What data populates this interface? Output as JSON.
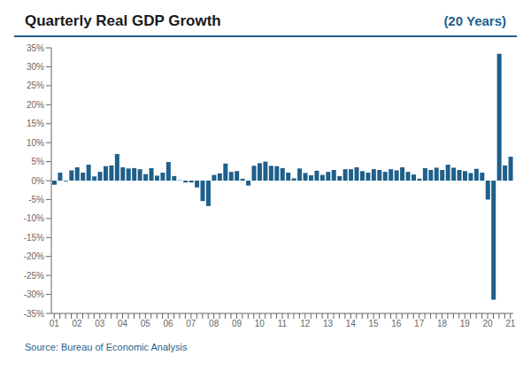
{
  "chart_data": {
    "type": "bar",
    "title": "Quarterly Real GDP Growth",
    "subtitle": "(20 Years)",
    "source": "Source: Bureau of Economic Analysis",
    "color": "#1F5F8B",
    "grid": false,
    "categories": [
      "01",
      null,
      null,
      null,
      "02",
      null,
      null,
      null,
      "03",
      null,
      null,
      null,
      "04",
      null,
      null,
      null,
      "05",
      null,
      null,
      null,
      "06",
      null,
      null,
      null,
      "07",
      null,
      null,
      null,
      "08",
      null,
      null,
      null,
      "09",
      null,
      null,
      null,
      "10",
      null,
      null,
      null,
      "11",
      null,
      null,
      null,
      "12",
      null,
      null,
      null,
      "13",
      null,
      null,
      null,
      "14",
      null,
      null,
      null,
      "15",
      null,
      null,
      null,
      "16",
      null,
      null,
      null,
      "17",
      null,
      null,
      null,
      "18",
      null,
      null,
      null,
      "19",
      null,
      null,
      null,
      "20",
      null,
      null,
      null,
      "21"
    ],
    "values": [
      -1.1,
      2.1,
      -0.2,
      2.7,
      3.5,
      2.1,
      4.2,
      1.1,
      2.3,
      3.8,
      4.0,
      7.0,
      3.5,
      3.2,
      3.3,
      3.0,
      1.7,
      3.3,
      1.3,
      2.1,
      4.9,
      1.2,
      0.1,
      -0.5,
      -0.5,
      -1.8,
      -5.4,
      -6.7,
      1.5,
      1.9,
      4.5,
      2.3,
      2.5,
      0.5,
      -1.3,
      3.9,
      4.6,
      5.0,
      3.9,
      3.8,
      3.3,
      2.1,
      0.6,
      3.2,
      2.0,
      1.4,
      2.6,
      1.5,
      2.3,
      2.8,
      1.2,
      3.0,
      3.0,
      3.5,
      2.5,
      2.1,
      3.0,
      2.8,
      2.3,
      3.0,
      2.7,
      3.5,
      2.3,
      1.6,
      0.5,
      3.3,
      2.8,
      3.4,
      2.8,
      4.2,
      3.4,
      2.8,
      2.5,
      2.0,
      3.1,
      2.1,
      -5.0,
      -31.4,
      33.4,
      4.0,
      6.3
    ],
    "ylim": [
      -35,
      35
    ],
    "yticks": [
      {
        "value": -35,
        "label": "-35%"
      },
      {
        "value": -30,
        "label": "-30%"
      },
      {
        "value": -25,
        "label": "-25%"
      },
      {
        "value": -20,
        "label": "-20%"
      },
      {
        "value": -15,
        "label": "-15%"
      },
      {
        "value": -10,
        "label": "-10%"
      },
      {
        "value": -5,
        "label": "-5%"
      },
      {
        "value": 0,
        "label": "0%"
      },
      {
        "value": 5,
        "label": "5%"
      },
      {
        "value": 10,
        "label": "10%"
      },
      {
        "value": 15,
        "label": "15%"
      },
      {
        "value": 20,
        "label": "20%"
      },
      {
        "value": 25,
        "label": "25%"
      },
      {
        "value": 30,
        "label": "30%"
      },
      {
        "value": 35,
        "label": "35%"
      }
    ]
  }
}
